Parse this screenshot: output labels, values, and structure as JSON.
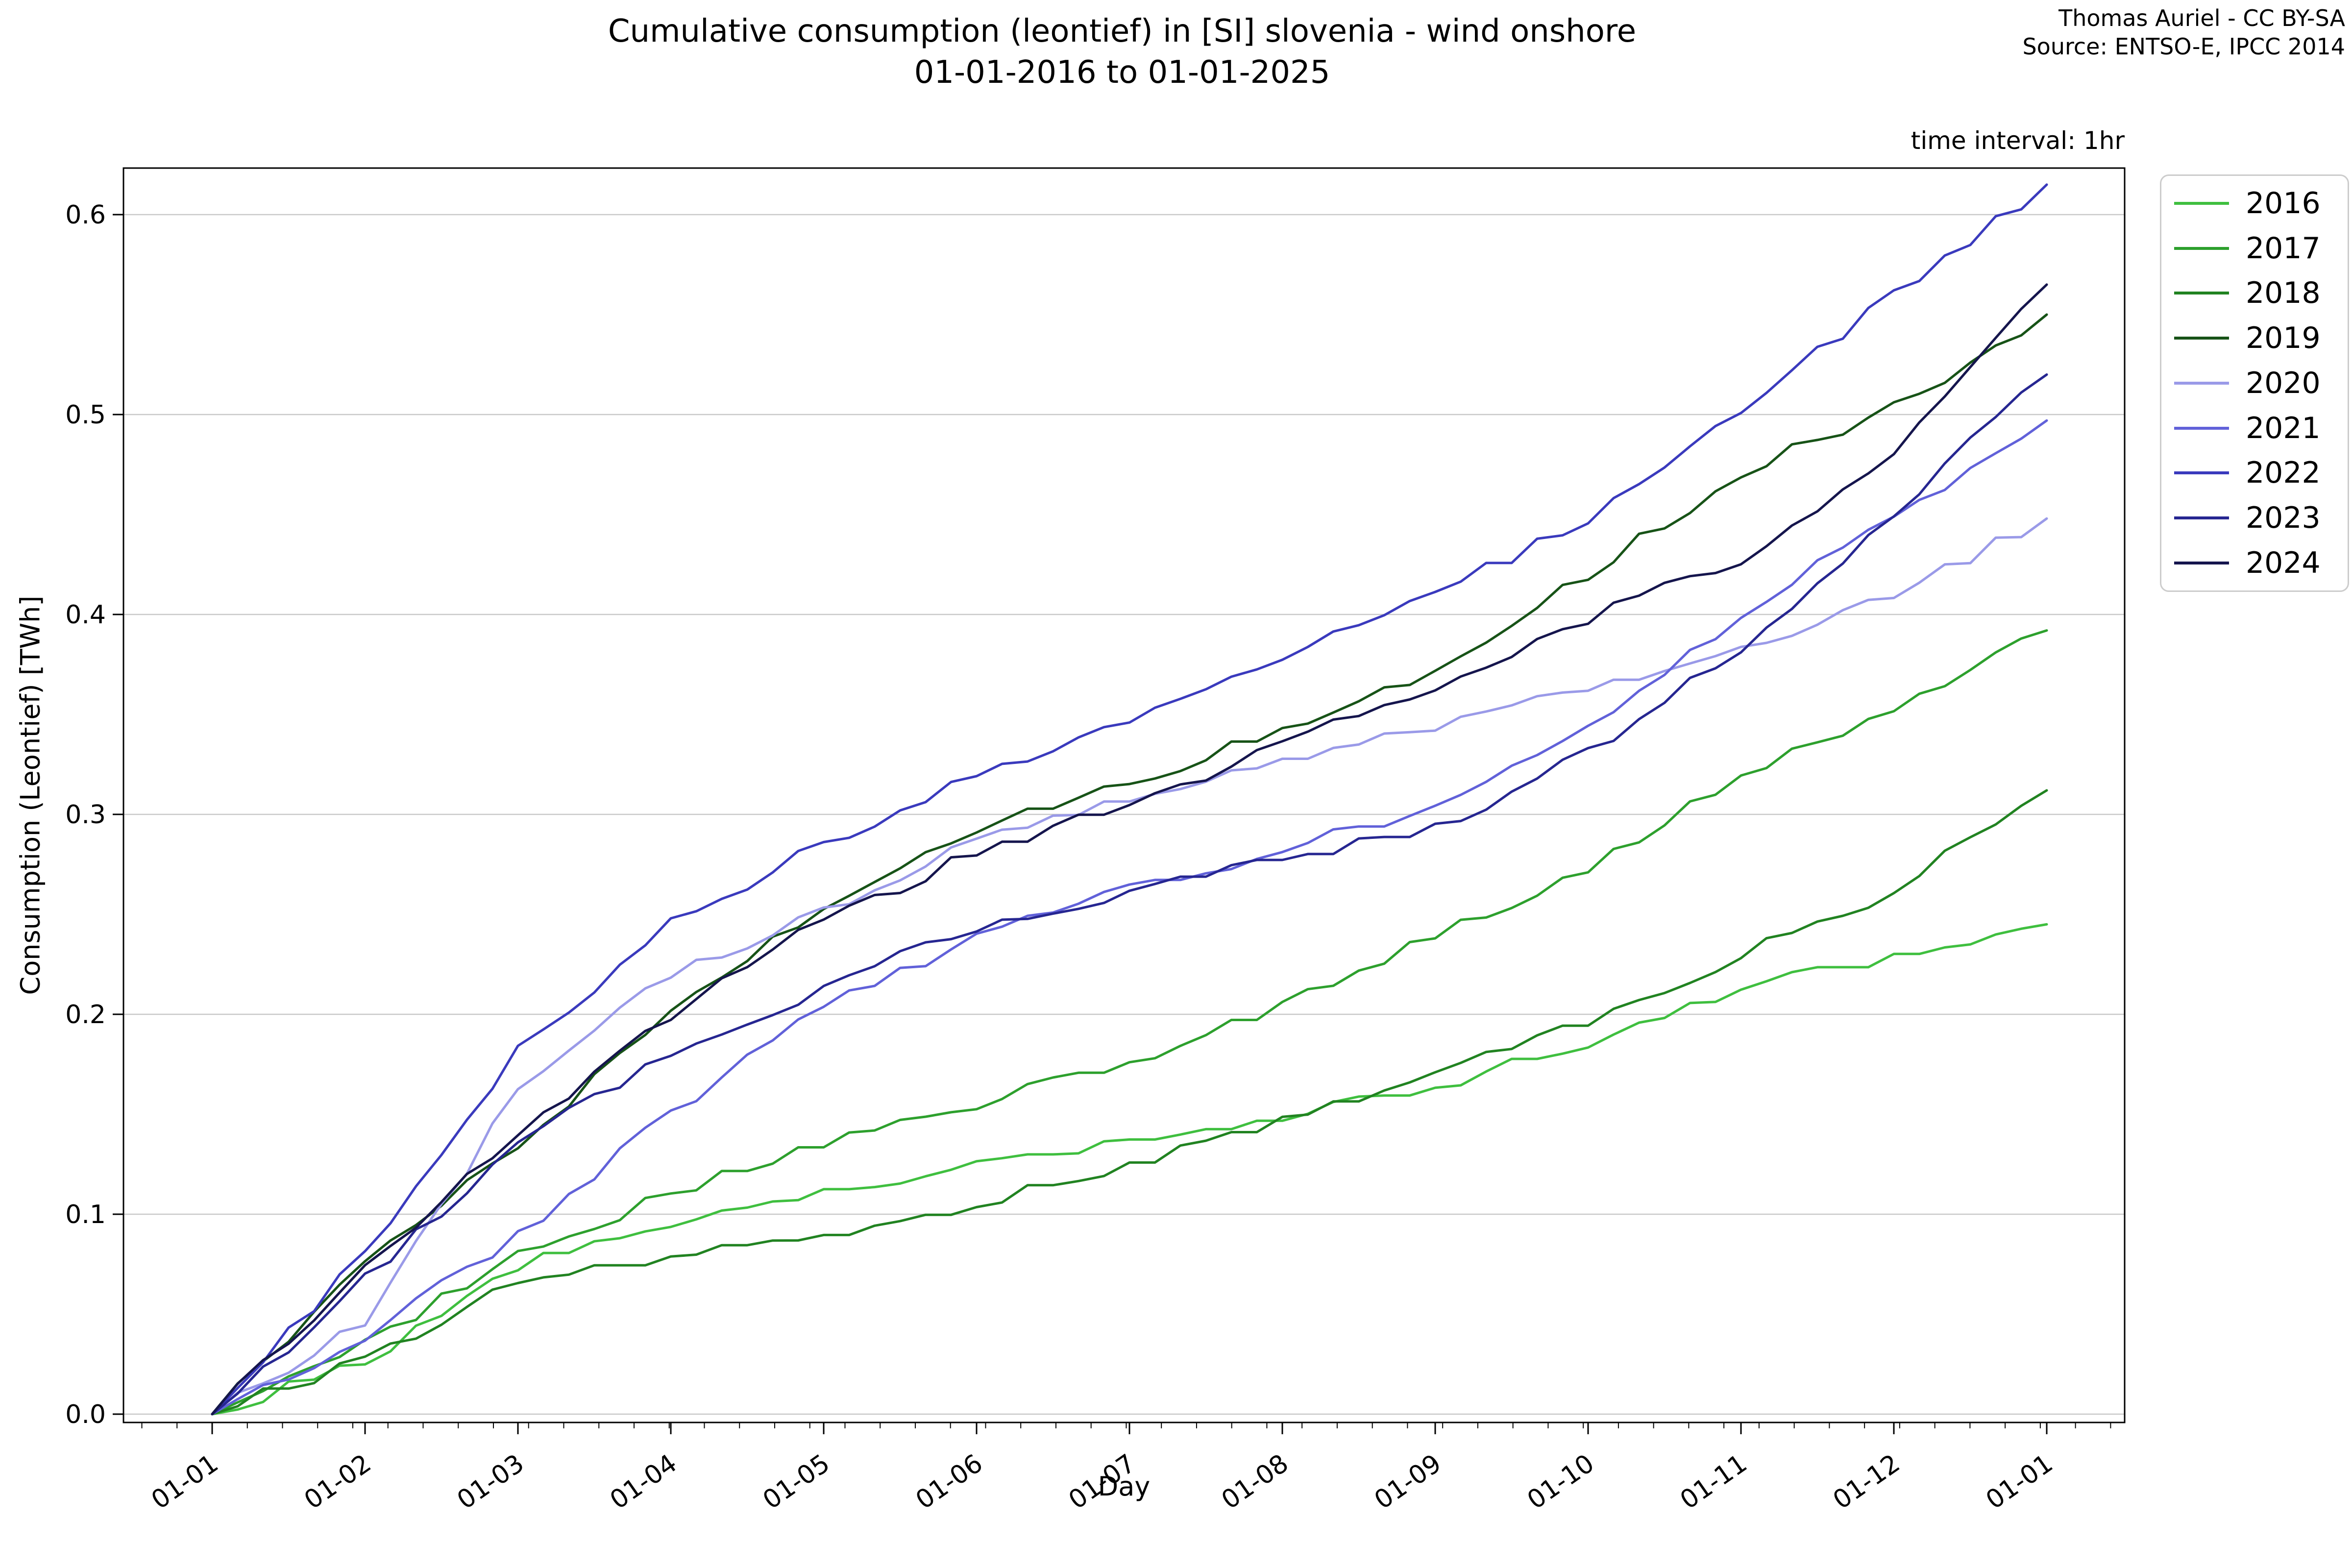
{
  "header": {
    "title_line1": "Cumulative consumption (leontief) in [SI] slovenia - wind onshore",
    "title_line2": "01-01-2016 to 01-01-2025",
    "attribution_line1": "Thomas Auriel - CC BY-SA",
    "attribution_line2": "Source: ENTSO-E, IPCC 2014",
    "interval_note": "time interval: 1hr"
  },
  "chart_data": {
    "type": "line",
    "title": "Cumulative consumption (leontief) in [SI] slovenia - wind onshore 01-01-2016 to 01-01-2025",
    "xlabel": "Day",
    "ylabel": "Consumption (Leontief) [TWh]",
    "x_tick_labels": [
      "01-01",
      "01-02",
      "01-03",
      "01-04",
      "01-05",
      "01-06",
      "01-07",
      "01-08",
      "01-09",
      "01-10",
      "01-11",
      "01-12",
      "01-01"
    ],
    "y_ticks": [
      "0.0",
      "0.1",
      "0.2",
      "0.3",
      "0.4",
      "0.5",
      "0.6"
    ],
    "ylim": [
      -0.02,
      0.63
    ],
    "grid": "horizontal",
    "legend_position": "outside-upper-right",
    "series": [
      {
        "name": "2016",
        "color": "#3fbf3f",
        "monthly_values": [
          0,
          0.027,
          0.074,
          0.093,
          0.11,
          0.124,
          0.135,
          0.149,
          0.163,
          0.186,
          0.214,
          0.229,
          0.245
        ]
      },
      {
        "name": "2017",
        "color": "#2da02d",
        "monthly_values": [
          0,
          0.035,
          0.08,
          0.11,
          0.135,
          0.155,
          0.175,
          0.205,
          0.24,
          0.272,
          0.319,
          0.352,
          0.392
        ]
      },
      {
        "name": "2018",
        "color": "#218321",
        "monthly_values": [
          0,
          0.028,
          0.065,
          0.078,
          0.088,
          0.105,
          0.124,
          0.146,
          0.169,
          0.197,
          0.23,
          0.262,
          0.312
        ]
      },
      {
        "name": "2019",
        "color": "#175317",
        "monthly_values": [
          0,
          0.075,
          0.134,
          0.2,
          0.255,
          0.293,
          0.315,
          0.342,
          0.372,
          0.42,
          0.471,
          0.503,
          0.55
        ]
      },
      {
        "name": "2020",
        "color": "#9a9ae8",
        "monthly_values": [
          0,
          0.046,
          0.162,
          0.22,
          0.25,
          0.288,
          0.307,
          0.325,
          0.344,
          0.362,
          0.381,
          0.41,
          0.448
        ]
      },
      {
        "name": "2021",
        "color": "#6161d9",
        "monthly_values": [
          0,
          0.039,
          0.09,
          0.15,
          0.205,
          0.238,
          0.262,
          0.283,
          0.303,
          0.345,
          0.398,
          0.45,
          0.497
        ]
      },
      {
        "name": "2022",
        "color": "#3a3abd",
        "monthly_values": [
          0,
          0.08,
          0.183,
          0.245,
          0.285,
          0.32,
          0.345,
          0.378,
          0.41,
          0.448,
          0.503,
          0.56,
          0.615
        ]
      },
      {
        "name": "2023",
        "color": "#262691",
        "monthly_values": [
          0,
          0.067,
          0.137,
          0.18,
          0.213,
          0.244,
          0.262,
          0.278,
          0.293,
          0.33,
          0.384,
          0.45,
          0.52
        ]
      },
      {
        "name": "2024",
        "color": "#15154d",
        "monthly_values": [
          0,
          0.073,
          0.141,
          0.2,
          0.247,
          0.281,
          0.305,
          0.335,
          0.364,
          0.398,
          0.427,
          0.48,
          0.565
        ]
      }
    ]
  },
  "style_colors": {
    "grid": "#c9c9c9",
    "axis": "#000000",
    "legend_border": "#cccccc",
    "background": "#ffffff"
  }
}
